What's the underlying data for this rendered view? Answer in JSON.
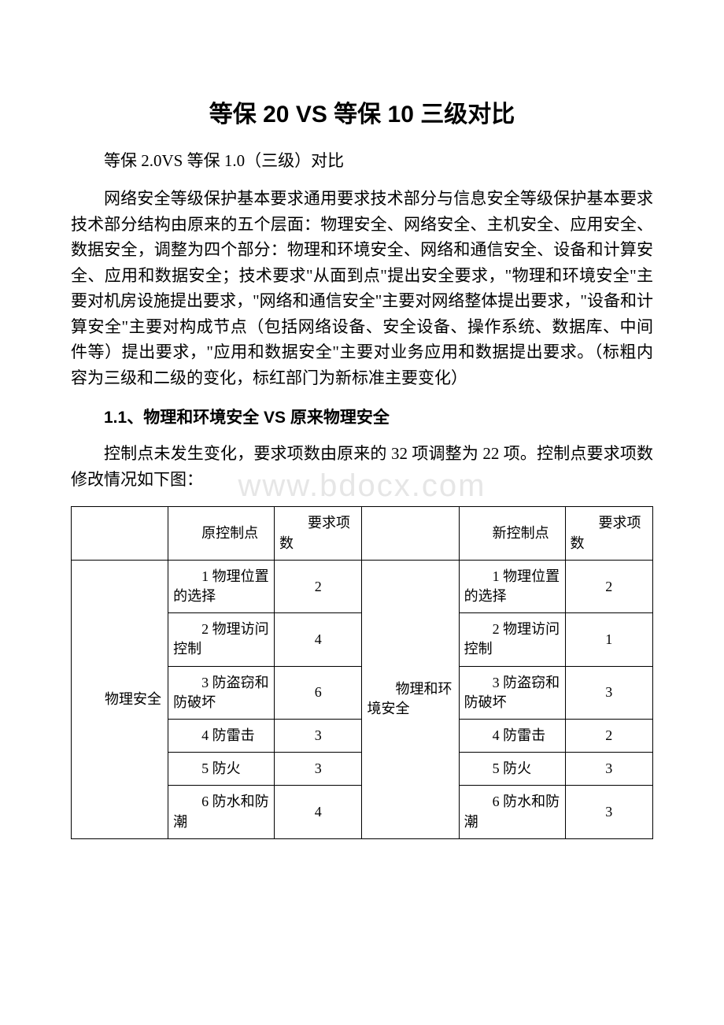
{
  "title": "等保 20 VS 等保 10 三级对比",
  "subtitle": "等保 2.0VS 等保 1.0（三级）对比",
  "intro": "网络安全等级保护基本要求通用要求技术部分与信息安全等级保护基本要求技术部分结构由原来的五个层面：物理安全、网络安全、主机安全、应用安全、数据安全，调整为四个部分：物理和环境安全、网络和通信安全、设备和计算安全、应用和数据安全；技术要求\"从面到点\"提出安全要求，\"物理和环境安全\"主要对机房设施提出要求，\"网络和通信安全\"主要对网络整体提出要求，\"设备和计算安全\"主要对构成节点（包括网络设备、安全设备、操作系统、数据库、中间件等）提出要求，\"应用和数据安全\"主要对业务应用和数据提出要求。（标粗内容为三级和二级的变化，标红部门为新标准主要变化）",
  "section_heading": "1.1、物理和环境安全 VS 原来物理安全",
  "section_body": "控制点未发生变化，要求项数由原来的 32 项调整为 22 项。控制点要求项数修改情况如下图：",
  "watermark": "www.bdocx.com",
  "table": {
    "headers": {
      "old_point": "原控制点",
      "old_count": "要求项数",
      "new_point": "新控制点",
      "new_count": "要求项数"
    },
    "old_category": "物理安全",
    "new_category": "物理和环境安全",
    "rows": [
      {
        "old_item": "1 物理位置的选择",
        "old_n": "2",
        "new_item": "1 物理位置的选择",
        "new_n": "2"
      },
      {
        "old_item": "2 物理访问控制",
        "old_n": "4",
        "new_item": "2 物理访问控制",
        "new_n": "1"
      },
      {
        "old_item": "3 防盗窃和防破坏",
        "old_n": "6",
        "new_item": "3 防盗窃和防破坏",
        "new_n": "3"
      },
      {
        "old_item": "4 防雷击",
        "old_n": "3",
        "new_item": "4 防雷击",
        "new_n": "2"
      },
      {
        "old_item": "5 防火",
        "old_n": "3",
        "new_item": "5 防火",
        "new_n": "3"
      },
      {
        "old_item": "6 防水和防潮",
        "old_n": "4",
        "new_item": "6 防水和防潮",
        "new_n": "3"
      }
    ],
    "border_color": "#000000",
    "font_size": 18,
    "col_widths": {
      "cat": 105,
      "item": 115,
      "num": 95
    }
  },
  "colors": {
    "text": "#000000",
    "background": "#ffffff",
    "watermark": "#e6e6e6"
  },
  "typography": {
    "title_fontsize": 30,
    "body_fontsize": 21,
    "table_fontsize": 18,
    "line_height": 1.55
  }
}
